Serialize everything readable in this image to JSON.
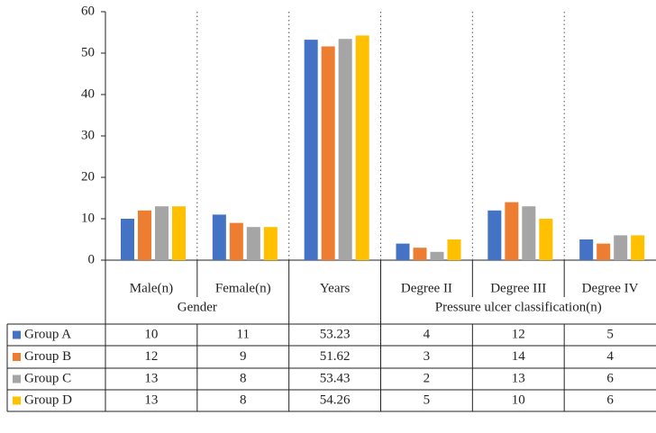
{
  "chart_data": {
    "type": "bar",
    "categories": [
      "Male(n)",
      "Female(n)",
      "Years",
      "Degree II",
      "Degree III",
      "Degree IV"
    ],
    "category_groups": [
      "Gender",
      "Gender",
      null,
      "Pressure ulcer classification(n)",
      "Pressure ulcer classification(n)",
      "Pressure ulcer classification(n)"
    ],
    "series": [
      {
        "name": "Group A",
        "color": "#4472c4",
        "values": [
          10,
          11,
          53.23,
          4,
          12,
          5
        ]
      },
      {
        "name": "Group B",
        "color": "#ed7d31",
        "values": [
          12,
          9,
          51.62,
          3,
          14,
          4
        ]
      },
      {
        "name": "Group C",
        "color": "#a5a5a5",
        "values": [
          13,
          8,
          53.43,
          2,
          13,
          6
        ]
      },
      {
        "name": "Group D",
        "color": "#ffc000",
        "values": [
          13,
          8,
          54.26,
          5,
          10,
          6
        ]
      }
    ],
    "ylim": [
      0,
      60
    ],
    "yticks": [
      0,
      10,
      20,
      30,
      40,
      50,
      60
    ],
    "grid": false
  }
}
